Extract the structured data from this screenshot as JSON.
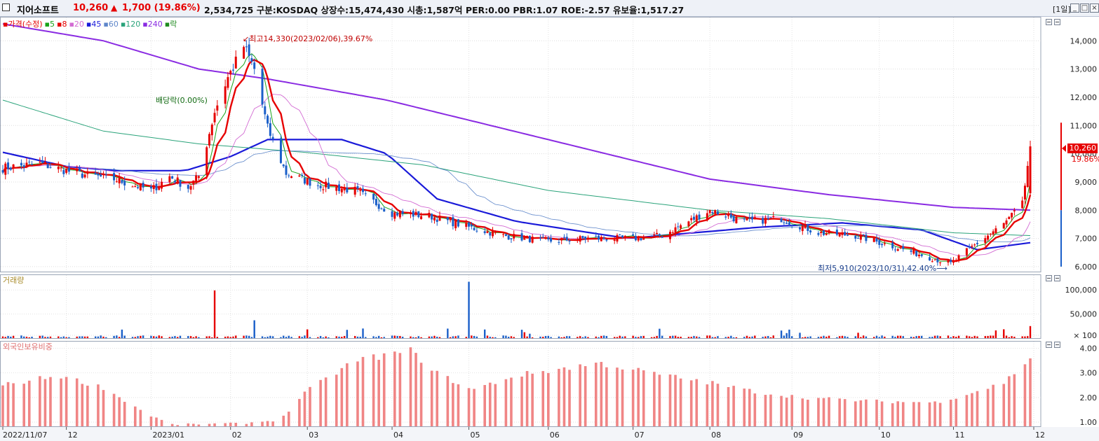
{
  "header": {
    "stock_name": "지어소프트",
    "price": "10,260",
    "change_arrow": "▲",
    "change": "1,700 (19.86%)",
    "info": "2,534,725  구분:KOSDAQ 상장수:15,474,430 시총:1,587억 PER:0.00 PBR:1.07 ROE:-2.57 유보율:1,517.27",
    "period": "[1일]",
    "win_buttons": [
      "_",
      "□",
      "×"
    ]
  },
  "legend_price": {
    "items": [
      {
        "label": "가격(수정)",
        "color": "#e60000"
      },
      {
        "label": "5",
        "color": "#19a319"
      },
      {
        "label": "8",
        "color": "#e60000"
      },
      {
        "label": "20",
        "color": "#d36bd3"
      },
      {
        "label": "45",
        "color": "#1a1ad9"
      },
      {
        "label": "60",
        "color": "#5e86c9"
      },
      {
        "label": "120",
        "color": "#2aa37a"
      },
      {
        "label": "240",
        "color": "#8a2be2"
      },
      {
        "label": "락",
        "color": "#1f8b1f"
      }
    ]
  },
  "legend_volume": {
    "label": "거래량",
    "color": "#a98c2c"
  },
  "legend_foreign": {
    "label": "외국인보유비중",
    "color": "#f08585"
  },
  "annotations": {
    "high": "최고14,330(2023/02/06),39.67%",
    "low": "최저5,910(2023/10/31),42.40%",
    "dividend": "배당락(0.00%)"
  },
  "current": {
    "price": "10,260",
    "pct": "19.86%"
  },
  "colors": {
    "up": "#e60000",
    "down": "#1a5fc9",
    "background": "#ffffff",
    "grid": "#c8c8c8"
  },
  "chart_data": [
    {
      "type": "candlestick",
      "title": "가격(수정)",
      "x_range": [
        "2022/11/07",
        "2023/11/30"
      ],
      "x_ticks": [
        "2022/11/07",
        "12",
        "2023/01",
        "02",
        "03",
        "04",
        "05",
        "06",
        "07",
        "08",
        "09",
        "10",
        "11",
        "12"
      ],
      "y_ticks": [
        "14,000",
        "13,000",
        "12,000",
        "11,000",
        "10,000",
        "9,000",
        "8,000",
        "7,000",
        "6,000"
      ],
      "ylim": [
        5800,
        14850
      ],
      "high": {
        "value": 14330,
        "date": "2023/02/06"
      },
      "low": {
        "value": 5910,
        "date": "2023/10/31"
      },
      "last_close": 10260,
      "close_path": [
        [
          "2022/11/07",
          9500
        ],
        [
          "2022/11/21",
          9650
        ],
        [
          "2022/12/05",
          9300
        ],
        [
          "2022/12/19",
          9100
        ],
        [
          "2023/01/02",
          8700
        ],
        [
          "2023/01/09",
          9200
        ],
        [
          "2023/01/16",
          8800
        ],
        [
          "2023/01/20",
          9200
        ],
        [
          "2023/01/26",
          11500
        ],
        [
          "2023/01/31",
          12700
        ],
        [
          "2023/02/06",
          13800
        ],
        [
          "2023/02/10",
          13000
        ],
        [
          "2023/02/15",
          10900
        ],
        [
          "2023/02/22",
          9300
        ],
        [
          "2023/03/06",
          8900
        ],
        [
          "2023/03/20",
          8700
        ],
        [
          "2023/04/03",
          7900
        ],
        [
          "2023/04/17",
          7800
        ],
        [
          "2023/05/02",
          7400
        ],
        [
          "2023/05/15",
          7100
        ],
        [
          "2023/06/01",
          6900
        ],
        [
          "2023/06/15",
          7000
        ],
        [
          "2023/07/03",
          7000
        ],
        [
          "2023/07/14",
          7100
        ],
        [
          "2023/08/01",
          8000
        ],
        [
          "2023/08/14",
          7600
        ],
        [
          "2023/08/28",
          7700
        ],
        [
          "2023/09/11",
          7200
        ],
        [
          "2023/09/25",
          7100
        ],
        [
          "2023/10/10",
          6700
        ],
        [
          "2023/10/31",
          6100
        ],
        [
          "2023/11/08",
          6700
        ],
        [
          "2023/11/20",
          7500
        ],
        [
          "2023/11/27",
          8200
        ],
        [
          "2023/11/30",
          10260
        ]
      ],
      "moving_averages": [
        {
          "name": "5",
          "color": "#19a319"
        },
        {
          "name": "8",
          "color": "#e60000"
        },
        {
          "name": "20",
          "color": "#d36bd3"
        },
        {
          "name": "45",
          "color": "#1a1ad9",
          "values": [
            [
              "2022/11/07",
              10050
            ],
            [
              "2022/12/01",
              9550
            ],
            [
              "2022/12/20",
              9400
            ],
            [
              "2023/01/15",
              9400
            ],
            [
              "2023/02/01",
              9900
            ],
            [
              "2023/02/15",
              10500
            ],
            [
              "2023/03/15",
              10500
            ],
            [
              "2023/04/01",
              10000
            ],
            [
              "2023/04/20",
              8400
            ],
            [
              "2023/05/20",
              7600
            ],
            [
              "2023/07/01",
              7000
            ],
            [
              "2023/08/20",
              7400
            ],
            [
              "2023/09/20",
              7550
            ],
            [
              "2023/10/20",
              7300
            ],
            [
              "2023/11/10",
              6600
            ],
            [
              "2023/11/30",
              6850
            ]
          ]
        },
        {
          "name": "60",
          "color": "#5e86c9"
        },
        {
          "name": "120",
          "color": "#2aa37a",
          "values": [
            [
              "2022/11/07",
              11900
            ],
            [
              "2022/12/15",
              10800
            ],
            [
              "2023/01/20",
              10350
            ],
            [
              "2023/03/01",
              10050
            ],
            [
              "2023/04/15",
              9600
            ],
            [
              "2023/06/01",
              8700
            ],
            [
              "2023/08/01",
              8000
            ],
            [
              "2023/09/15",
              7700
            ],
            [
              "2023/11/01",
              7200
            ],
            [
              "2023/11/30",
              7100
            ]
          ]
        },
        {
          "name": "240",
          "color": "#8a2be2",
          "values": [
            [
              "2022/11/07",
              14600
            ],
            [
              "2022/12/15",
              14000
            ],
            [
              "2023/01/20",
              13000
            ],
            [
              "2023/02/15",
              12650
            ],
            [
              "2023/04/01",
              11900
            ],
            [
              "2023/06/01",
              10500
            ],
            [
              "2023/08/01",
              9100
            ],
            [
              "2023/09/15",
              8550
            ],
            [
              "2023/11/01",
              8100
            ],
            [
              "2023/11/30",
              8000
            ]
          ]
        }
      ]
    },
    {
      "type": "bar",
      "title": "거래량",
      "y_ticks": [
        "100,000",
        "50,000",
        "× 100"
      ],
      "ylim": [
        0,
        125000
      ],
      "notable_bars": [
        {
          "date": "2023/01/26",
          "value": 99000
        },
        {
          "date": "2023/02/10",
          "value": 37000
        },
        {
          "date": "2023/05/02",
          "value": 117000
        },
        {
          "date": "2023/11/30",
          "value": 25000
        }
      ]
    },
    {
      "type": "bar",
      "title": "외국인보유비중",
      "y_ticks": [
        "4.00",
        "3.00",
        "2.00",
        "1.00"
      ],
      "ylim": [
        0.8,
        4.3
      ],
      "profile": [
        [
          "2022/11/07",
          2.5
        ],
        [
          "2022/11/28",
          2.9
        ],
        [
          "2022/12/15",
          2.4
        ],
        [
          "2023/01/01",
          1.3
        ],
        [
          "2023/01/10",
          0.9
        ],
        [
          "2023/02/06",
          0.95
        ],
        [
          "2023/02/20",
          1.1
        ],
        [
          "2023/03/01",
          2.2
        ],
        [
          "2023/03/20",
          3.5
        ],
        [
          "2023/04/10",
          3.9
        ],
        [
          "2023/04/20",
          3.0
        ],
        [
          "2023/05/03",
          2.3
        ],
        [
          "2023/05/20",
          2.9
        ],
        [
          "2023/06/20",
          3.4
        ],
        [
          "2023/07/15",
          2.9
        ],
        [
          "2023/08/01",
          2.6
        ],
        [
          "2023/08/20",
          2.2
        ],
        [
          "2023/09/05",
          2.0
        ],
        [
          "2023/10/01",
          1.85
        ],
        [
          "2023/10/25",
          1.8
        ],
        [
          "2023/11/05",
          2.1
        ],
        [
          "2023/11/20",
          2.6
        ],
        [
          "2023/11/30",
          3.6
        ]
      ]
    }
  ]
}
